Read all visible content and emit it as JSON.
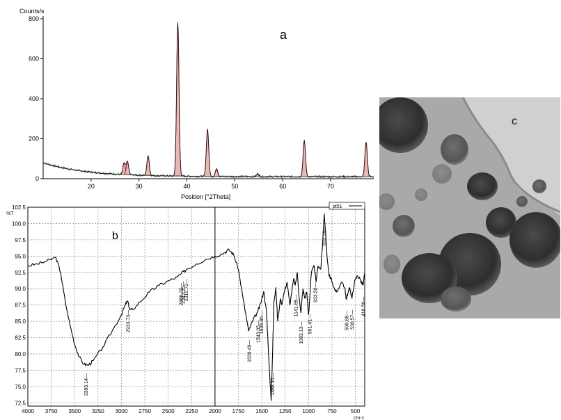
{
  "chart_data": [
    {
      "type": "line",
      "panel_label": "a",
      "ylabel": "Counts/s",
      "xlabel": "Position [°2Theta]",
      "xlim": [
        10,
        79
      ],
      "ylim": [
        0,
        800
      ],
      "x_ticks": [
        20,
        30,
        40,
        50,
        60,
        70
      ],
      "y_ticks": [
        0,
        200,
        400,
        600,
        800
      ],
      "grid": false,
      "colors": {
        "trace": "#1a1a1a",
        "peaks": "#a31f1f",
        "background": "#2e7d32"
      },
      "peaks": [
        {
          "x": 26.9,
          "y": 80
        },
        {
          "x": 27.6,
          "y": 85
        },
        {
          "x": 31.9,
          "y": 115
        },
        {
          "x": 38.1,
          "y": 780
        },
        {
          "x": 44.3,
          "y": 248
        },
        {
          "x": 46.2,
          "y": 50
        },
        {
          "x": 54.8,
          "y": 25
        },
        {
          "x": 64.5,
          "y": 190
        },
        {
          "x": 77.4,
          "y": 183
        }
      ]
    },
    {
      "type": "line",
      "panel_label": "b",
      "legend": "pt51",
      "ylabel": "%T",
      "xlabel": "cm-1",
      "xlim": [
        4000,
        400
      ],
      "ylim": [
        72,
        102.5
      ],
      "x_ticks": [
        4000,
        3750,
        3500,
        3250,
        3000,
        2750,
        2500,
        2250,
        2000,
        1750,
        1500,
        1250,
        1000,
        750,
        500
      ],
      "y_ticks": [
        72.5,
        75.0,
        77.5,
        80.0,
        82.5,
        85.0,
        87.5,
        90.0,
        92.5,
        95.0,
        97.5,
        100.0,
        102.5
      ],
      "grid": true,
      "series": [
        {
          "x": [
            4000,
            3900,
            3800,
            3700,
            3650,
            3600,
            3550,
            3500,
            3450,
            3400,
            3350,
            3300,
            3200,
            3100,
            3000,
            2960,
            2933,
            2910,
            2880,
            2800,
            2700,
            2600,
            2500,
            2400,
            2360,
            2300,
            2200,
            2100,
            2000,
            1900,
            1850,
            1800,
            1750,
            1700,
            1640,
            1600,
            1543,
            1510,
            1480,
            1450,
            1420,
            1400,
            1385,
            1370,
            1350,
            1330,
            1300,
            1288,
            1260,
            1230,
            1200,
            1160,
            1142,
            1120,
            1100,
            1083,
            1060,
            1040,
            1020,
            1000,
            970,
            940,
            920,
            900,
            870,
            850,
            833,
            815,
            800,
            780,
            760,
            740,
            700,
            650,
            610,
            599,
            575,
            560,
            536,
            510,
            480,
            450,
            419,
            400
          ],
          "y": [
            93.5,
            93.8,
            94.2,
            94.8,
            92.5,
            88.0,
            84.5,
            81.5,
            79.5,
            78.4,
            78.3,
            79.0,
            81.0,
            83.5,
            86.0,
            87.5,
            88.1,
            86.8,
            86.8,
            88.0,
            89.5,
            90.5,
            91.2,
            91.8,
            92.3,
            93.0,
            93.8,
            94.5,
            95.0,
            95.5,
            96.0,
            95.2,
            93.0,
            88.5,
            83.5,
            85.0,
            86.5,
            87.8,
            89.6,
            86.5,
            78.0,
            72.8,
            80.0,
            88.0,
            90.2,
            85.0,
            88.5,
            87.6,
            89.5,
            91.0,
            87.5,
            91.5,
            90.5,
            92.5,
            88.5,
            86.3,
            90.0,
            88.5,
            89.5,
            86.0,
            92.5,
            93.5,
            91.0,
            93.5,
            93.0,
            97.0,
            101.5,
            98.0,
            94.5,
            92.0,
            91.5,
            90.5,
            89.5,
            91.0,
            90.0,
            88.4,
            89.5,
            90.2,
            88.5,
            91.0,
            92.0,
            91.5,
            90.5,
            92.5
          ]
        }
      ],
      "annotations": [
        "3383.14",
        "2933.73",
        "2366.23",
        "2343.35",
        "2310.72",
        "1639.49",
        "1543.05",
        "1508.86",
        "1388.30",
        "1141.85",
        "1083.13",
        "991.41",
        "933.50",
        "833.28",
        "598.88",
        "536.57",
        "418.56"
      ]
    },
    {
      "type": "image",
      "panel_label": "c",
      "description_icon": "tem-micrograph"
    }
  ]
}
